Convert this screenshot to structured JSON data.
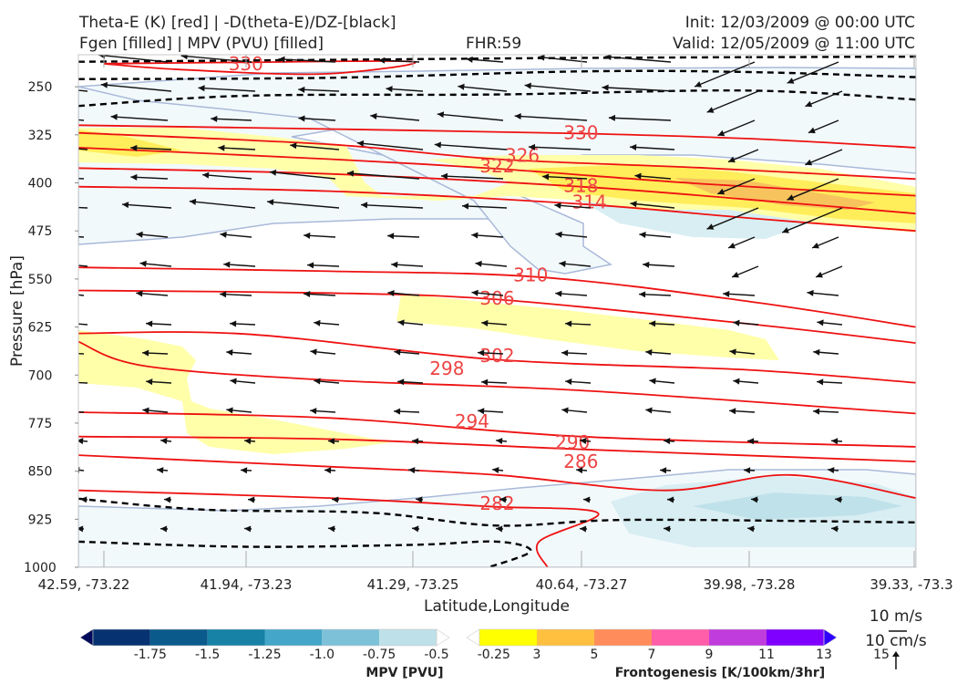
{
  "header": {
    "line1_left": "Theta-E (K) [red] | -D(theta-E)/DZ-[black]",
    "line2_left": "Fgen [filled] | MPV (PVU) [filled]",
    "fhr": "FHR:59",
    "init": "Init: 12/03/2009 @ 00:00 UTC",
    "valid": "Valid: 12/05/2009 @ 11:00 UTC"
  },
  "chart_data": {
    "type": "cross-section",
    "xlabel": "Latitude,Longitude",
    "ylabel": "Pressure [hPa]",
    "ylim": [
      1000,
      200
    ],
    "x_ticks": [
      "42.59, -73.22",
      "41.94, -73.23",
      "41.29, -73.25",
      "40.64, -73.27",
      "39.98, -73.28",
      "39.33, -73.3"
    ],
    "y_ticks": [
      250,
      325,
      400,
      475,
      550,
      625,
      700,
      775,
      850,
      925,
      1000
    ],
    "theta_e_contours": [
      {
        "label": "330",
        "points": [
          [
            0.03,
            214
          ],
          [
            0.19,
            212
          ],
          [
            0.4,
            211
          ],
          [
            0.29,
            230
          ],
          [
            0.12,
            223
          ],
          [
            0.03,
            214
          ]
        ]
      },
      {
        "label": "330",
        "points": [
          [
            0,
            310
          ],
          [
            0.3,
            316
          ],
          [
            0.6,
            323
          ],
          [
            0.8,
            331
          ],
          [
            1,
            345
          ]
        ]
      },
      {
        "label": "326",
        "points": [
          [
            0,
            322
          ],
          [
            0.3,
            340
          ],
          [
            0.5,
            363
          ],
          [
            0.75,
            377
          ],
          [
            1,
            394
          ]
        ]
      },
      {
        "label": "322",
        "points": [
          [
            0,
            345
          ],
          [
            0.3,
            363
          ],
          [
            0.5,
            378
          ],
          [
            0.75,
            402
          ],
          [
            1,
            420
          ]
        ]
      },
      {
        "label": "318",
        "points": [
          [
            0,
            377
          ],
          [
            0.3,
            386
          ],
          [
            0.6,
            406
          ],
          [
            0.8,
            426
          ],
          [
            1,
            448
          ]
        ]
      },
      {
        "label": "314",
        "points": [
          [
            0,
            406
          ],
          [
            0.3,
            413
          ],
          [
            0.6,
            433
          ],
          [
            0.8,
            455
          ],
          [
            1,
            475
          ]
        ]
      },
      {
        "label": "310",
        "points": [
          [
            0,
            532
          ],
          [
            0.3,
            538
          ],
          [
            0.55,
            547
          ],
          [
            0.8,
            585
          ],
          [
            1,
            625
          ]
        ]
      },
      {
        "label": "306",
        "points": [
          [
            0,
            568
          ],
          [
            0.3,
            572
          ],
          [
            0.5,
            582
          ],
          [
            0.8,
            620
          ],
          [
            1,
            650
          ]
        ]
      },
      {
        "label": "302",
        "points": [
          [
            0,
            635
          ],
          [
            0.2,
            636
          ],
          [
            0.5,
            676
          ],
          [
            0.8,
            692
          ],
          [
            1,
            712
          ]
        ]
      },
      {
        "label": "298",
        "points": [
          [
            0,
            648
          ],
          [
            0.08,
            686
          ],
          [
            0.3,
            708
          ],
          [
            0.6,
            724
          ],
          [
            1,
            760
          ]
        ]
      },
      {
        "label": "294",
        "points": [
          [
            0,
            758
          ],
          [
            0.3,
            767
          ],
          [
            0.6,
            796
          ],
          [
            1,
            812
          ]
        ]
      },
      {
        "label": "290",
        "points": [
          [
            0,
            796
          ],
          [
            0.3,
            800
          ],
          [
            0.6,
            816
          ],
          [
            1,
            835
          ]
        ]
      },
      {
        "label": "286",
        "points": [
          [
            0,
            825
          ],
          [
            0.3,
            843
          ],
          [
            0.5,
            856
          ],
          [
            0.7,
            880
          ],
          [
            0.85,
            856
          ],
          [
            1,
            892
          ]
        ]
      },
      {
        "label": "282",
        "points": [
          [
            0,
            880
          ],
          [
            0.3,
            892
          ],
          [
            0.49,
            905
          ],
          [
            0.62,
            915
          ],
          [
            0.55,
            960
          ],
          [
            0.56,
            1000
          ]
        ]
      }
    ],
    "ddz_contours": [
      {
        "points": [
          [
            0,
            211
          ],
          [
            0.3,
            208
          ],
          [
            0.6,
            205
          ],
          [
            1,
            203
          ]
        ]
      },
      {
        "points": [
          [
            0,
            238
          ],
          [
            0.3,
            236
          ],
          [
            0.6,
            226
          ],
          [
            0.8,
            227
          ],
          [
            1,
            235
          ]
        ]
      },
      {
        "points": [
          [
            0,
            280
          ],
          [
            0.2,
            264
          ],
          [
            0.5,
            262
          ],
          [
            0.8,
            256
          ],
          [
            1,
            270
          ]
        ]
      },
      {
        "points": [
          [
            0,
            893
          ],
          [
            0.15,
            910
          ],
          [
            0.35,
            915
          ],
          [
            0.5,
            935
          ],
          [
            0.66,
            926
          ],
          [
            1,
            930
          ]
        ]
      },
      {
        "points": [
          [
            0,
            960
          ],
          [
            0.2,
            968
          ],
          [
            0.4,
            965
          ],
          [
            0.5,
            960
          ],
          [
            0.54,
            975
          ],
          [
            0.49,
            1000
          ]
        ]
      }
    ],
    "mpv_contour_levels": [
      -1.75,
      -1.5,
      -1.25,
      -1.0,
      -0.75,
      -0.5,
      -0.25
    ],
    "fgen_contour_levels": [
      3,
      5,
      7,
      9,
      11,
      13,
      15
    ],
    "fgen_colors": [
      "#ffffff",
      "#ffff00",
      "#ffc040",
      "#ff8c5a",
      "#ff5ea8",
      "#c03cdc",
      "#8000ff",
      "#3000ff"
    ],
    "mpv_colors": [
      "#000a5a",
      "#063271",
      "#0a5a8c",
      "#1781a6",
      "#44a6c8",
      "#7dc1d8",
      "#bee0e8",
      "#ffffff"
    ],
    "colorbar_mpv_ticks": [
      "-1.75",
      "-1.5",
      "-1.25",
      "-1.0",
      "-0.75",
      "-0.5",
      "-0.25"
    ],
    "colorbar_fgen_ticks": [
      "3",
      "5",
      "7",
      "9",
      "11",
      "13",
      "15"
    ],
    "colorbar_mpv_label": "MPV [PVU]",
    "colorbar_fgen_label": "Frontogenesis [K/100km/3hr]",
    "vector_key_1": "10 m/s",
    "vector_key_2": "10 cm/s"
  }
}
